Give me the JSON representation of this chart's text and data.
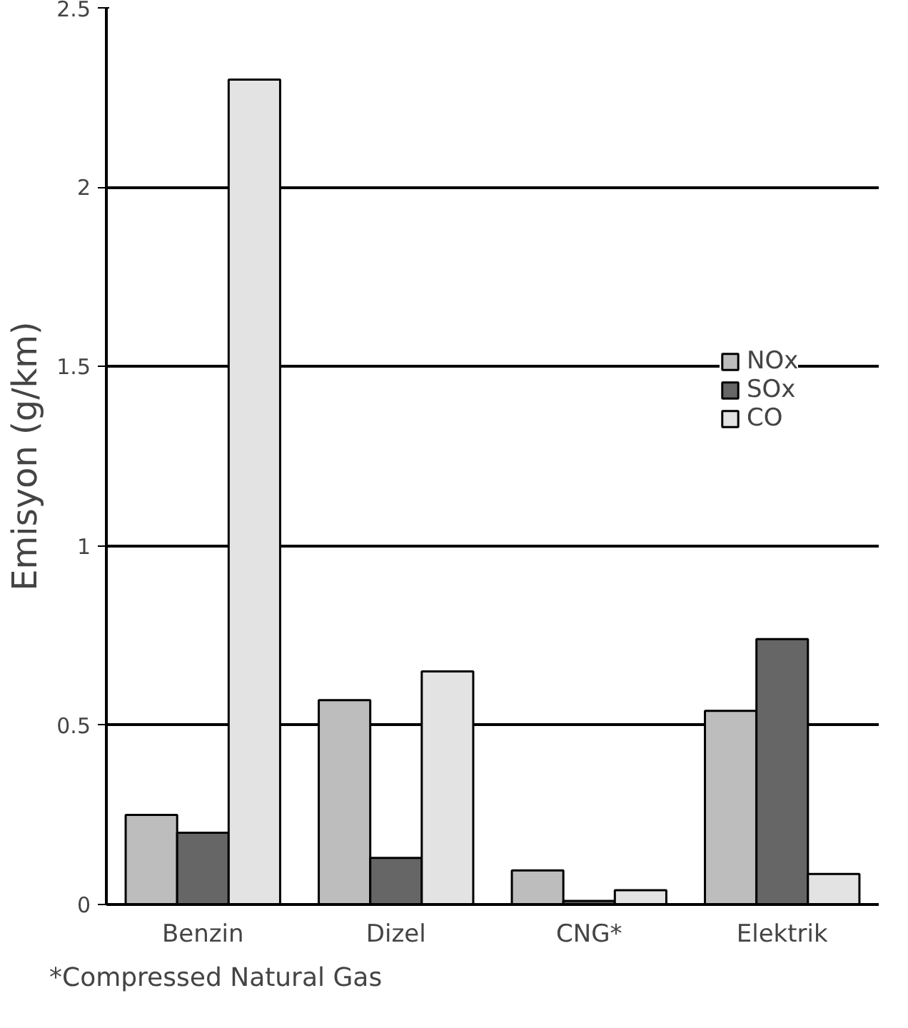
{
  "chart_data": {
    "type": "bar",
    "ylabel": "Emisyon (g/km)",
    "categories": [
      "Benzin",
      "Dizel",
      "CNG*",
      "Elektrik"
    ],
    "series": [
      {
        "name": "NOx",
        "color": "#bdbdbd",
        "values": [
          0.25,
          0.57,
          0.095,
          0.54
        ]
      },
      {
        "name": "SOx",
        "color": "#666666",
        "values": [
          0.2,
          0.13,
          0.01,
          0.74
        ]
      },
      {
        "name": "CO",
        "color": "#e3e3e3",
        "values": [
          2.3,
          0.65,
          0.04,
          0.085
        ]
      }
    ],
    "ylim": [
      0,
      2.5
    ],
    "yticks": [
      0,
      0.5,
      1,
      1.5,
      2,
      2.5
    ],
    "grid": "y",
    "legend": "right",
    "annotations": [
      "*Compressed Natural Gas"
    ]
  }
}
